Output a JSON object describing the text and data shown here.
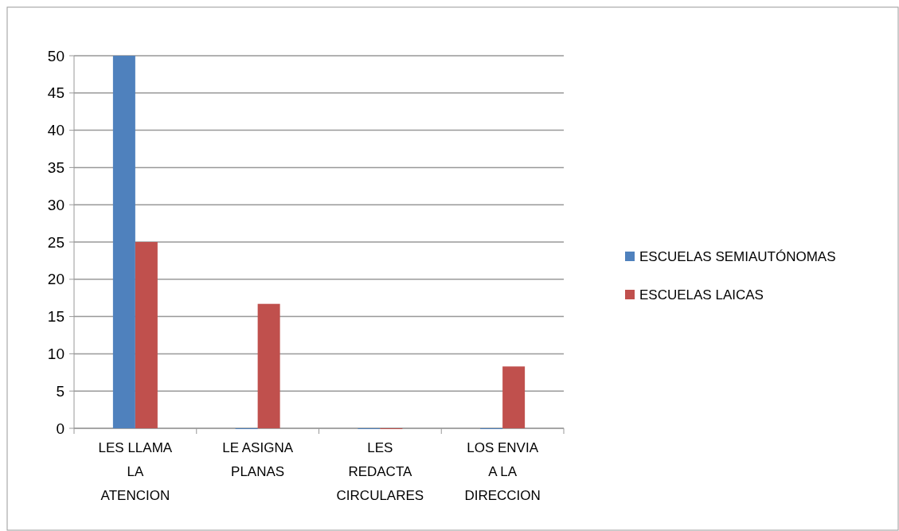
{
  "chart_data": {
    "type": "bar",
    "categories": [
      "LES LLAMA LA ATENCION",
      "LE ASIGNA PLANAS",
      "LES REDACTA CIRCULARES",
      "LOS ENVIA A LA DIRECCION"
    ],
    "series": [
      {
        "name": "ESCUELAS SEMIAUTÓNOMAS",
        "color": "#4f81bd",
        "values": [
          50,
          0,
          0,
          0
        ]
      },
      {
        "name": "ESCUELAS LAICAS",
        "color": "#c0504d",
        "values": [
          25,
          16.7,
          0,
          8.3
        ]
      }
    ],
    "ylim": [
      0,
      50
    ],
    "yticks": [
      0,
      5,
      10,
      15,
      20,
      25,
      30,
      35,
      40,
      45,
      50
    ],
    "grid": "y",
    "legend": "right"
  }
}
